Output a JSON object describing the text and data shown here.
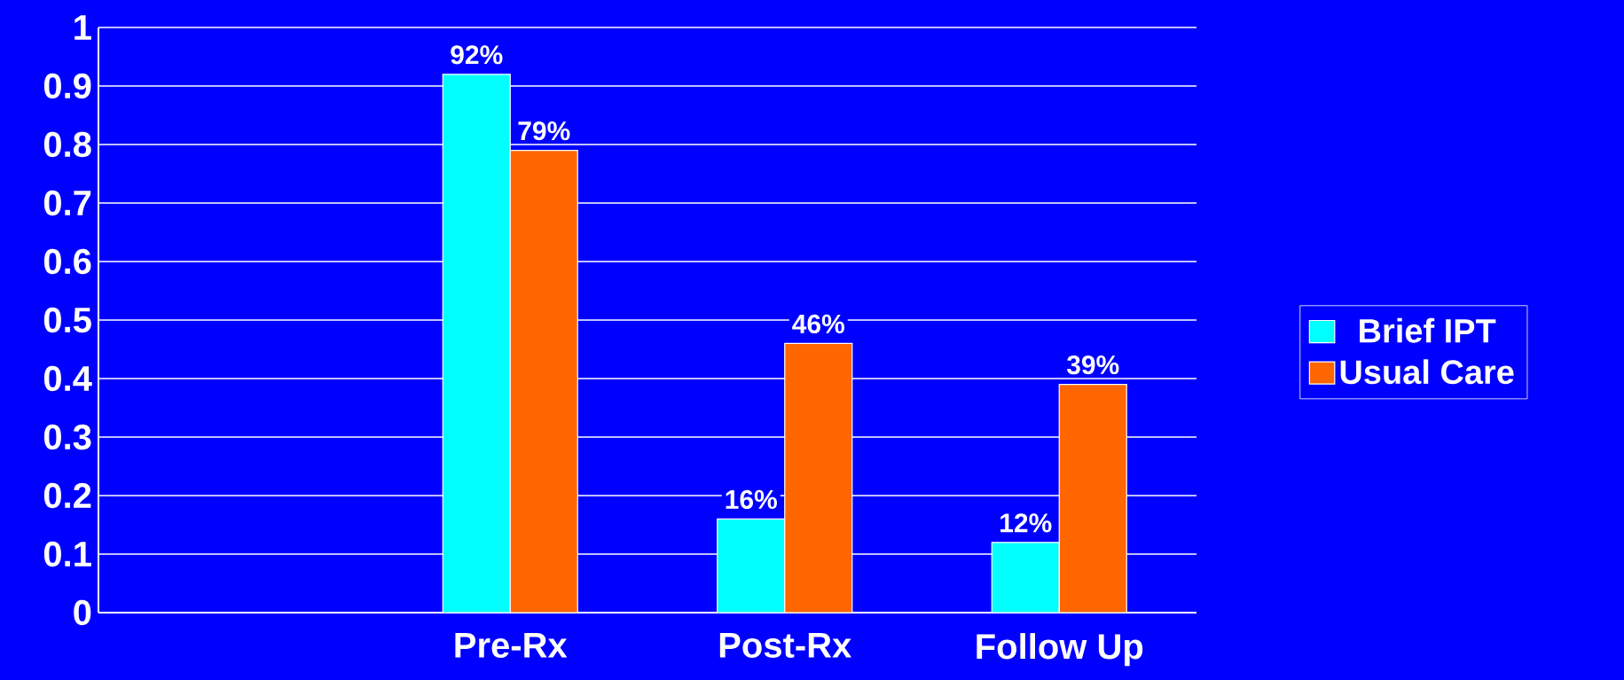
{
  "chart_data": {
    "type": "bar",
    "categories": [
      null,
      "Pre-Rx",
      "Post-Rx",
      "Follow Up"
    ],
    "series": [
      {
        "name": "Brief IPT",
        "color": "#00ffff",
        "values": [
          null,
          0.92,
          0.16,
          0.12
        ],
        "value_labels": [
          null,
          "92%",
          "16%",
          "12%"
        ]
      },
      {
        "name": "Usual Care",
        "color": "#ff6600",
        "values": [
          null,
          0.79,
          0.46,
          0.39
        ],
        "value_labels": [
          null,
          "79%",
          "46%",
          "39%"
        ]
      }
    ],
    "ylim": [
      0,
      1
    ],
    "yticks": [
      0,
      0.1,
      0.2,
      0.3,
      0.4,
      0.5,
      0.6,
      0.7,
      0.8,
      0.9,
      1
    ],
    "grid": "y",
    "legend": "right"
  }
}
